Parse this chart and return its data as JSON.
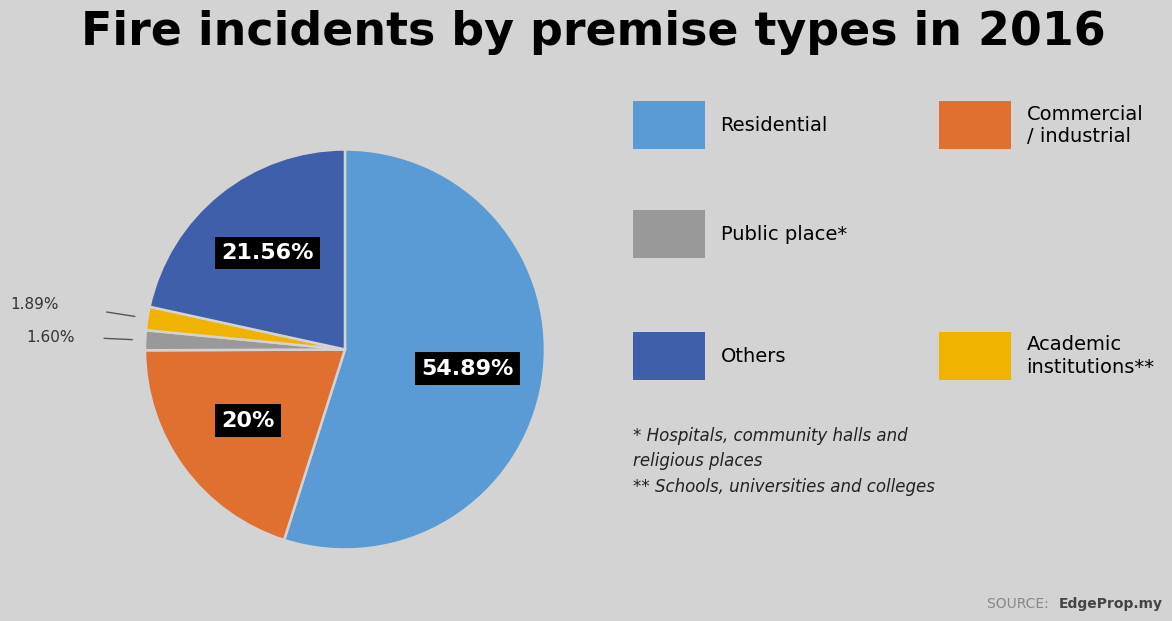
{
  "title": "Fire incidents by premise types in 2016",
  "background_color": "#d3d3d3",
  "slices": [
    {
      "label": "Residential",
      "pct": 54.89,
      "color": "#5b9bd5",
      "pct_label": "54.89%",
      "label_color": "white",
      "label_bg": "black"
    },
    {
      "label": "Commercial / industrial",
      "pct": 20.0,
      "color": "#e07030",
      "pct_label": "20%",
      "label_color": "white",
      "label_bg": "black"
    },
    {
      "label": "Public place*",
      "pct": 1.6,
      "color": "#999999",
      "pct_label": "1.60%",
      "label_color": "#444444",
      "label_bg": null
    },
    {
      "label": "Academic institutions**",
      "pct": 1.89,
      "color": "#f0b400",
      "pct_label": "1.89%",
      "label_color": "#444444",
      "label_bg": null
    },
    {
      "label": "Others",
      "pct": 21.56,
      "color": "#3f5faa",
      "pct_label": "21.56%",
      "label_color": "white",
      "label_bg": "black"
    }
  ],
  "legend_items": [
    {
      "label": "Residential",
      "color": "#5b9bd5",
      "col": 0,
      "row": 0
    },
    {
      "label": "Commercial\n/ industrial",
      "color": "#e07030",
      "col": 1,
      "row": 0
    },
    {
      "label": "Public place*",
      "color": "#999999",
      "col": 0,
      "row": 1
    },
    {
      "label": "Others",
      "color": "#3f5faa",
      "col": 0,
      "row": 2
    },
    {
      "label": "Academic\ninstitutions**",
      "color": "#f0b400",
      "col": 1,
      "row": 2
    }
  ],
  "footnote": "* Hospitals, community halls and\nreligious places\n** Schools, universities and colleges",
  "source_label": "SOURCE: ",
  "source_bold": "EdgeProp.my"
}
